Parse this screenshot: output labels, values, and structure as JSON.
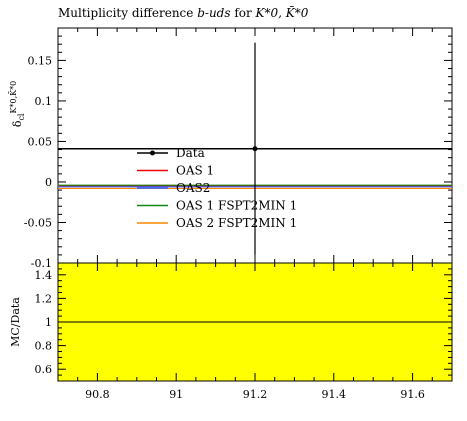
{
  "chart_data": [
    {
      "type": "line",
      "title": "Multiplicity difference b-uds for K*0, K̄*0",
      "title_parts": {
        "prefix": "Multiplicity difference ",
        "italic": "b-uds",
        "middle": " for ",
        "tail": "K*0, K̄*0"
      },
      "ylabel": "δ K*0,K̄*0 (cl)",
      "xlim": [
        90.7,
        91.7
      ],
      "ylim": [
        -0.1,
        0.19
      ],
      "yticks": [
        -0.1,
        -0.05,
        0,
        0.05,
        0.1,
        0.15
      ],
      "ytick_labels": [
        "-0.1",
        "-0.05",
        "0",
        "0.05",
        "0.1",
        "0.15"
      ],
      "grid": false,
      "legend_placement": "center-left",
      "data_point": {
        "name": "Data",
        "x": 91.2,
        "y": 0.041,
        "yerr_low": 0.131,
        "yerr_high": 0.131,
        "line_value": 0.041,
        "color": "#000000"
      },
      "series": [
        {
          "name": "OAS 1",
          "value": -0.005,
          "color": "#ee0000"
        },
        {
          "name": "OAS2",
          "value": -0.006,
          "color": "#3366ff"
        },
        {
          "name": "OAS 1 FSPT2MIN 1",
          "value": -0.004,
          "color": "#118811"
        },
        {
          "name": "OAS 2 FSPT2MIN 1",
          "value": -0.008,
          "color": "#ff8800"
        }
      ]
    },
    {
      "type": "line",
      "ylabel": "MC/Data",
      "xlim": [
        90.7,
        91.7
      ],
      "ylim": [
        0.5,
        1.5
      ],
      "xticks": [
        90.8,
        91,
        91.2,
        91.4,
        91.6
      ],
      "xtick_labels": [
        "90.8",
        "91",
        "91.2",
        "91.4",
        "91.6"
      ],
      "yticks": [
        0.6,
        0.8,
        1,
        1.2,
        1.4
      ],
      "ytick_labels": [
        "0.6",
        "0.8",
        "1",
        "1.2",
        "1.4"
      ],
      "reference_line": 1,
      "band": {
        "low": 0.5,
        "high": 1.5,
        "color": "#ffff00"
      }
    }
  ]
}
